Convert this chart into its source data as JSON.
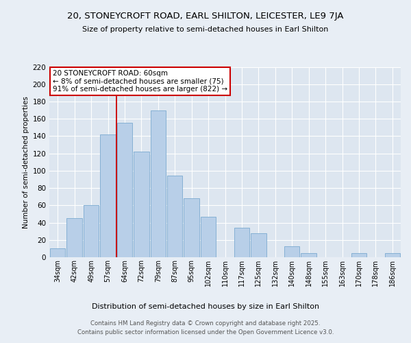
{
  "title1": "20, STONEYCROFT ROAD, EARL SHILTON, LEICESTER, LE9 7JA",
  "title2": "Size of property relative to semi-detached houses in Earl Shilton",
  "xlabel": "Distribution of semi-detached houses by size in Earl Shilton",
  "ylabel": "Number of semi-detached properties",
  "categories": [
    "34sqm",
    "42sqm",
    "49sqm",
    "57sqm",
    "64sqm",
    "72sqm",
    "79sqm",
    "87sqm",
    "95sqm",
    "102sqm",
    "110sqm",
    "117sqm",
    "125sqm",
    "132sqm",
    "140sqm",
    "148sqm",
    "155sqm",
    "163sqm",
    "170sqm",
    "178sqm",
    "186sqm"
  ],
  "values": [
    10,
    45,
    60,
    142,
    155,
    122,
    170,
    94,
    68,
    47,
    0,
    34,
    28,
    0,
    13,
    5,
    0,
    0,
    5,
    0,
    5
  ],
  "bar_color": "#b8cfe8",
  "bar_edge_color": "#7aaad0",
  "annotation_title": "20 STONEYCROFT ROAD: 60sqm",
  "annotation_line1": "← 8% of semi-detached houses are smaller (75)",
  "annotation_line2": "91% of semi-detached houses are larger (822) →",
  "annotation_box_color": "#ffffff",
  "annotation_box_edge": "#cc0000",
  "line_color": "#cc0000",
  "footer1": "Contains HM Land Registry data © Crown copyright and database right 2025.",
  "footer2": "Contains public sector information licensed under the Open Government Licence v3.0.",
  "bg_color": "#e8eef5",
  "plot_bg_color": "#dde6f0",
  "ylim": [
    0,
    220
  ],
  "yticks": [
    0,
    20,
    40,
    60,
    80,
    100,
    120,
    140,
    160,
    180,
    200,
    220
  ]
}
